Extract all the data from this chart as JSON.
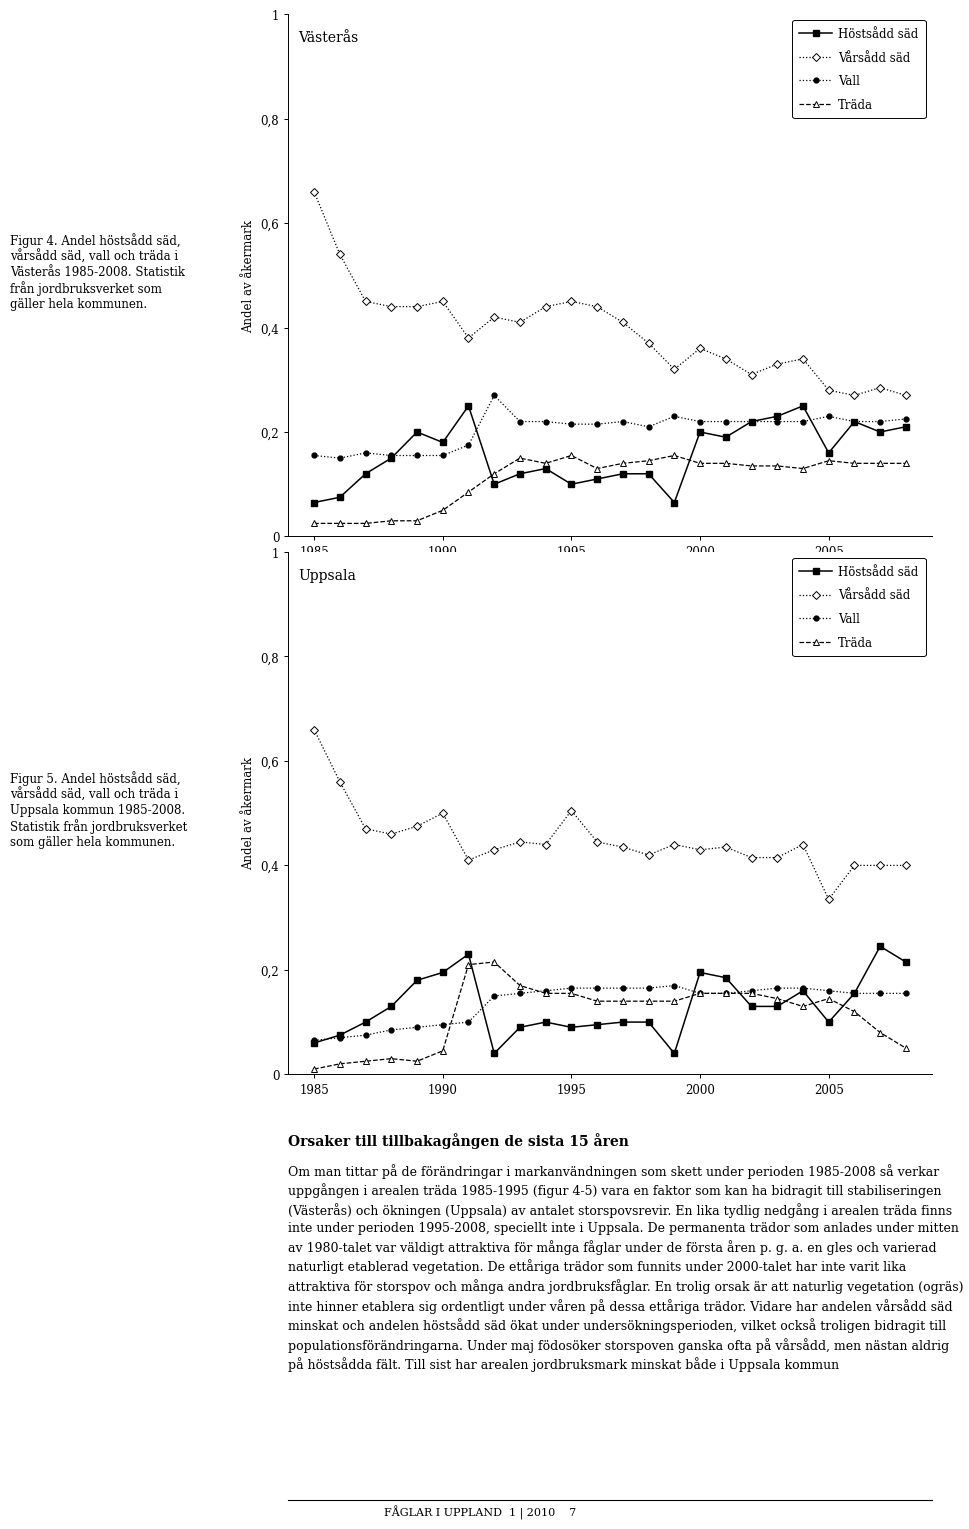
{
  "vasteras": {
    "title": "Västerås",
    "years": [
      1985,
      1986,
      1987,
      1988,
      1989,
      1990,
      1991,
      1992,
      1993,
      1994,
      1995,
      1996,
      1997,
      1998,
      1999,
      2000,
      2001,
      2002,
      2003,
      2004,
      2005,
      2006,
      2007,
      2008
    ],
    "hostsadd": [
      0.065,
      0.075,
      0.12,
      0.15,
      0.2,
      0.18,
      0.25,
      0.1,
      0.12,
      0.13,
      0.1,
      0.11,
      0.12,
      0.12,
      0.065,
      0.2,
      0.19,
      0.22,
      0.23,
      0.25,
      0.16,
      0.22,
      0.2,
      0.21
    ],
    "varsadd": [
      0.66,
      0.54,
      0.45,
      0.44,
      0.44,
      0.45,
      0.38,
      0.42,
      0.41,
      0.44,
      0.45,
      0.44,
      0.41,
      0.37,
      0.32,
      0.36,
      0.34,
      0.31,
      0.33,
      0.34,
      0.28,
      0.27,
      0.285,
      0.27
    ],
    "vall": [
      0.155,
      0.15,
      0.16,
      0.155,
      0.155,
      0.155,
      0.175,
      0.27,
      0.22,
      0.22,
      0.215,
      0.215,
      0.22,
      0.21,
      0.23,
      0.22,
      0.22,
      0.22,
      0.22,
      0.22,
      0.23,
      0.22,
      0.22,
      0.225
    ],
    "trada": [
      0.025,
      0.025,
      0.025,
      0.03,
      0.03,
      0.05,
      0.085,
      0.12,
      0.15,
      0.14,
      0.155,
      0.13,
      0.14,
      0.145,
      0.155,
      0.14,
      0.14,
      0.135,
      0.135,
      0.13,
      0.145,
      0.14,
      0.14,
      0.14
    ]
  },
  "uppsala": {
    "title": "Uppsala",
    "years": [
      1985,
      1986,
      1987,
      1988,
      1989,
      1990,
      1991,
      1992,
      1993,
      1994,
      1995,
      1996,
      1997,
      1998,
      1999,
      2000,
      2001,
      2002,
      2003,
      2004,
      2005,
      2006,
      2007,
      2008
    ],
    "hostsadd": [
      0.06,
      0.075,
      0.1,
      0.13,
      0.18,
      0.195,
      0.23,
      0.04,
      0.09,
      0.1,
      0.09,
      0.095,
      0.1,
      0.1,
      0.04,
      0.195,
      0.185,
      0.13,
      0.13,
      0.16,
      0.1,
      0.155,
      0.245,
      0.215
    ],
    "varsadd": [
      0.66,
      0.56,
      0.47,
      0.46,
      0.475,
      0.5,
      0.41,
      0.43,
      0.445,
      0.44,
      0.505,
      0.445,
      0.435,
      0.42,
      0.44,
      0.43,
      0.435,
      0.415,
      0.415,
      0.44,
      0.335,
      0.4,
      0.4,
      0.4
    ],
    "vall": [
      0.065,
      0.07,
      0.075,
      0.085,
      0.09,
      0.095,
      0.1,
      0.15,
      0.155,
      0.16,
      0.165,
      0.165,
      0.165,
      0.165,
      0.17,
      0.155,
      0.155,
      0.16,
      0.165,
      0.165,
      0.16,
      0.155,
      0.155,
      0.155
    ],
    "trada": [
      0.01,
      0.02,
      0.025,
      0.03,
      0.025,
      0.045,
      0.21,
      0.215,
      0.17,
      0.155,
      0.155,
      0.14,
      0.14,
      0.14,
      0.14,
      0.155,
      0.155,
      0.155,
      0.145,
      0.13,
      0.145,
      0.12,
      0.08,
      0.05
    ]
  },
  "ylabel": "Andel av åkermark",
  "ylim": [
    0,
    1.0
  ],
  "yticks": [
    0,
    0.2,
    0.4,
    0.6,
    0.8,
    1.0
  ],
  "ytick_labels": [
    "0",
    "0,2",
    "0,4",
    "0,6",
    "0,8",
    "1"
  ],
  "xticks": [
    1985,
    1990,
    1995,
    2000,
    2005
  ],
  "figur4_caption": "Figur 4. Andel höstsådd säd,\nvårsådd säd, vall och träda i\nVästerås 1985-2008. Statistik\nfrån jordbruksverket som\ngäller hela kommunen.",
  "figur5_caption": "Figur 5. Andel höstsådd säd,\nvårsådd säd, vall och träda i\nUppsala kommun 1985-2008.\nStatistik från jordbruksverket\nsom gäller hela kommunen.",
  "section_title": "Orsaker till tillbakagången de sista 15 åren",
  "body_text": "Om man tittar på de förändringar i markanvändningen som skett under perioden 1985-2008 så verkar uppgången i arealen träda 1985-1995 (figur 4-5) vara en faktor som kan ha bidragit till stabiliseringen (Västerås) och ökningen (Uppsala) av antalet storspovsrevir. En lika tydlig nedgång i arealen träda finns inte under perioden 1995-2008, speciellt inte i Uppsala. De permanenta trädor som anlades under mitten av 1980-talet var väldigt attraktiva för många fåglar under de första åren p. g. a. en gles och varierad naturligt etablerad vegetation. De ettåriga trädor som funnits under 2000-talet har inte varit lika attraktiva för storspov och många andra jordbruksfåglar. En trolig orsak är att naturlig vegetation (ogräs) inte hinner etablera sig ordentligt under våren på dessa ettåriga trädor. Vidare har andelen vårsådd säd minskat och andelen höstsådd säd ökat under undersökningsperioden, vilket också troligen bidragit till populationsförändringarna. Under maj födosöker storspoven ganska ofta på vårsådd, men nästan aldrig på höstsådda fält. Till sist har arealen jordbruksmark minskat både i Uppsala kommun",
  "footer": "FÅGLAR I UPPLAND  1 | 2010    7",
  "legend_labels": [
    "Höstsådd säd",
    "Vårsådd säd",
    "Vall",
    "Träda"
  ]
}
